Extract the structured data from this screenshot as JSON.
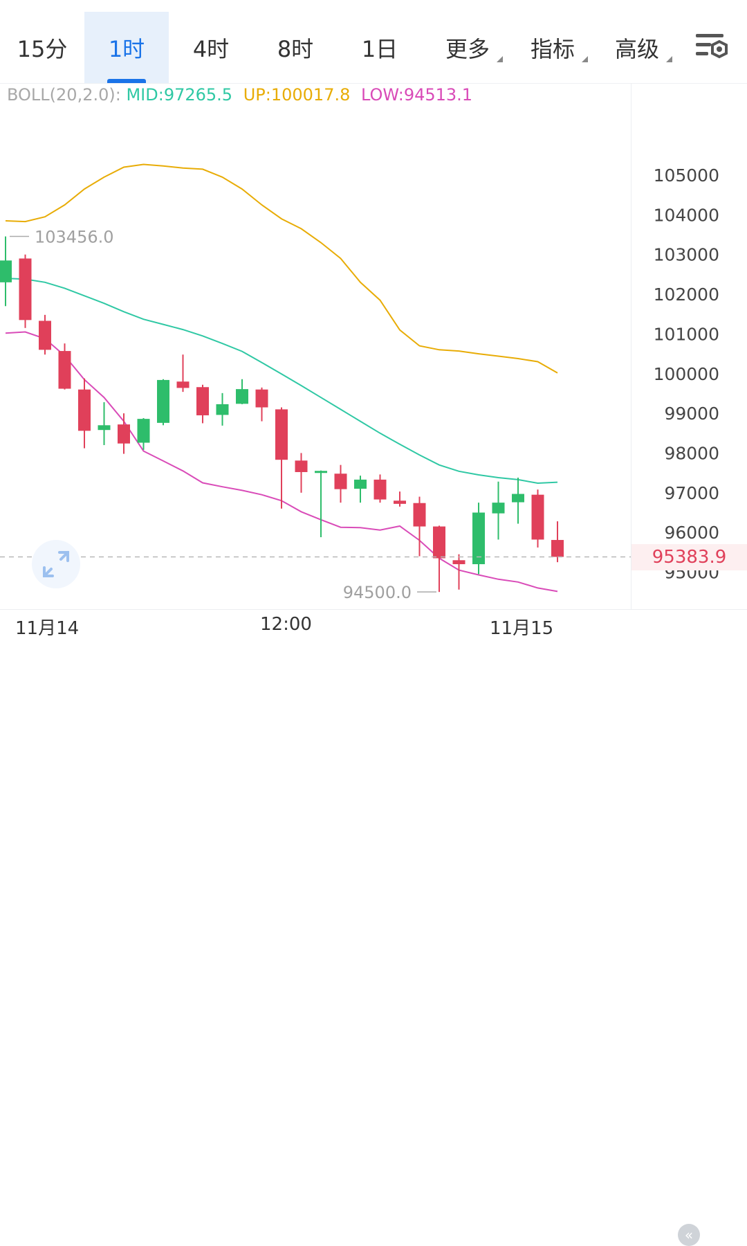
{
  "tabs": [
    {
      "label": "15分",
      "active": false,
      "dropdown": false
    },
    {
      "label": "1时",
      "active": true,
      "dropdown": false
    },
    {
      "label": "4时",
      "active": false,
      "dropdown": false
    },
    {
      "label": "8时",
      "active": false,
      "dropdown": false
    },
    {
      "label": "1日",
      "active": false,
      "dropdown": false
    },
    {
      "label": "更多",
      "active": false,
      "dropdown": true
    },
    {
      "label": "指标",
      "active": false,
      "dropdown": true
    },
    {
      "label": "高级",
      "active": false,
      "dropdown": true
    }
  ],
  "toolbar": {
    "settings_icon": "chart-settings-icon"
  },
  "indicator": {
    "label": "BOLL(20,2.0):",
    "mid": "MID:97265.5",
    "up": "UP:100017.8",
    "low": "LOW:94513.1"
  },
  "colors": {
    "up_candle": "#2ebd6b",
    "down_candle": "#e0405a",
    "boll_mid": "#2fc8a4",
    "boll_up": "#e8ac06",
    "boll_low": "#d94bb8",
    "last_price": "#e0405a"
  },
  "last_price": "95383.9",
  "high_marker": "103456.0",
  "low_marker": "94500.0",
  "time_axis": {
    "labels": [
      "11月14",
      "12:00",
      "11月15"
    ]
  },
  "chart_data": {
    "type": "candlestick",
    "y_ticks": [
      105000,
      104000,
      103000,
      102000,
      101000,
      100000,
      99000,
      98000,
      97000,
      96000,
      95000
    ],
    "ylim": [
      94200,
      106000
    ],
    "candles": [
      {
        "o": 102300,
        "h": 103456,
        "l": 101700,
        "c": 102850
      },
      {
        "o": 102900,
        "h": 103000,
        "l": 101150,
        "c": 101350
      },
      {
        "o": 101330,
        "h": 101480,
        "l": 100480,
        "c": 100600
      },
      {
        "o": 100570,
        "h": 100760,
        "l": 99600,
        "c": 99620
      },
      {
        "o": 99600,
        "h": 99880,
        "l": 98120,
        "c": 98560
      },
      {
        "o": 98580,
        "h": 99280,
        "l": 98200,
        "c": 98700
      },
      {
        "o": 98720,
        "h": 99000,
        "l": 97980,
        "c": 98240
      },
      {
        "o": 98260,
        "h": 98880,
        "l": 98080,
        "c": 98860
      },
      {
        "o": 98760,
        "h": 99860,
        "l": 98700,
        "c": 99840
      },
      {
        "o": 99800,
        "h": 100480,
        "l": 99540,
        "c": 99640
      },
      {
        "o": 99660,
        "h": 99720,
        "l": 98750,
        "c": 98950
      },
      {
        "o": 98960,
        "h": 99510,
        "l": 98690,
        "c": 99230
      },
      {
        "o": 99240,
        "h": 99860,
        "l": 99230,
        "c": 99610
      },
      {
        "o": 99600,
        "h": 99650,
        "l": 98800,
        "c": 99150
      },
      {
        "o": 99100,
        "h": 99150,
        "l": 96600,
        "c": 97830
      },
      {
        "o": 97810,
        "h": 98000,
        "l": 97000,
        "c": 97520
      },
      {
        "o": 97500,
        "h": 97560,
        "l": 95880,
        "c": 97550
      },
      {
        "o": 97480,
        "h": 97700,
        "l": 96750,
        "c": 97090
      },
      {
        "o": 97100,
        "h": 97430,
        "l": 96750,
        "c": 97330
      },
      {
        "o": 97330,
        "h": 97460,
        "l": 96750,
        "c": 96830
      },
      {
        "o": 96800,
        "h": 97030,
        "l": 96650,
        "c": 96720
      },
      {
        "o": 96740,
        "h": 96900,
        "l": 95400,
        "c": 96150
      },
      {
        "o": 96150,
        "h": 96170,
        "l": 94500,
        "c": 95350
      },
      {
        "o": 95300,
        "h": 95450,
        "l": 94560,
        "c": 95200
      },
      {
        "o": 95200,
        "h": 96750,
        "l": 94950,
        "c": 96500
      },
      {
        "o": 96480,
        "h": 97280,
        "l": 95820,
        "c": 96750
      },
      {
        "o": 96760,
        "h": 97380,
        "l": 96220,
        "c": 96970
      },
      {
        "o": 96950,
        "h": 97080,
        "l": 95620,
        "c": 95820
      },
      {
        "o": 95810,
        "h": 96280,
        "l": 95250,
        "c": 95383.9
      }
    ],
    "boll_mid": [
      102400,
      102380,
      102300,
      102150,
      101960,
      101770,
      101560,
      101370,
      101240,
      101110,
      100950,
      100760,
      100560,
      100280,
      99990,
      99700,
      99400,
      99100,
      98800,
      98500,
      98220,
      97950,
      97700,
      97540,
      97450,
      97380,
      97330,
      97240,
      97265.5
    ],
    "boll_up": [
      103850,
      103830,
      103950,
      104250,
      104650,
      104950,
      105200,
      105270,
      105230,
      105180,
      105150,
      104950,
      104650,
      104250,
      103900,
      103650,
      103300,
      102900,
      102300,
      101850,
      101100,
      100700,
      100600,
      100570,
      100500,
      100440,
      100380,
      100300,
      100017.8
    ],
    "boll_low": [
      101020,
      101050,
      100880,
      100450,
      99850,
      99400,
      98800,
      98050,
      97800,
      97550,
      97250,
      97150,
      97060,
      96950,
      96800,
      96520,
      96320,
      96130,
      96120,
      96060,
      96160,
      95800,
      95350,
      95050,
      94930,
      94820,
      94750,
      94600,
      94513.1
    ]
  }
}
